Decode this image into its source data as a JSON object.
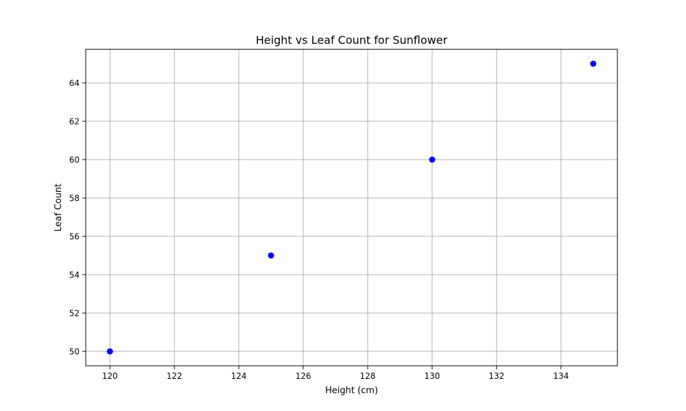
{
  "chart_data": {
    "type": "scatter",
    "title": "Height vs Leaf Count for Sunflower",
    "xlabel": "Height (cm)",
    "ylabel": "Leaf Count",
    "x": [
      120,
      125,
      130,
      135
    ],
    "y": [
      50,
      55,
      60,
      65
    ],
    "xlim": [
      119.25,
      135.75
    ],
    "ylim": [
      49.25,
      65.75
    ],
    "xticks": [
      120,
      122,
      124,
      126,
      128,
      130,
      132,
      134
    ],
    "yticks": [
      50,
      52,
      54,
      56,
      58,
      60,
      62,
      64
    ],
    "grid": true,
    "marker_color": "#0000ff"
  }
}
